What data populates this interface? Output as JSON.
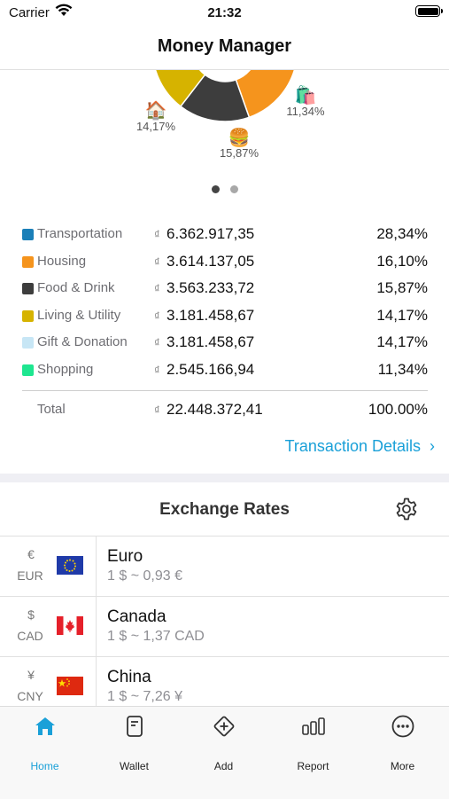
{
  "status": {
    "carrier": "Carrier",
    "time": "21:32"
  },
  "nav": {
    "title": "Money Manager"
  },
  "chart": {
    "labels": [
      {
        "text": "14,17%",
        "emoji": "🏠"
      },
      {
        "text": "15,87%",
        "emoji": "🍔"
      },
      {
        "text": "11,34%",
        "emoji": "🛍️"
      }
    ]
  },
  "chart_data": {
    "type": "pie",
    "categories": [
      "Transportation",
      "Housing",
      "Food & Drink",
      "Living & Utility",
      "Gift & Donation",
      "Shopping"
    ],
    "values": [
      28.34,
      16.1,
      15.87,
      14.17,
      14.17,
      11.34
    ],
    "colors": [
      "#1a7fb8",
      "#f5941d",
      "#3d3d3d",
      "#d6b300",
      "#c7e6f5",
      "#1ee690"
    ]
  },
  "legend": {
    "currency_symbol": "₫",
    "rows": [
      {
        "name": "Transportation",
        "amount": "6.362.917,35",
        "percent": "28,34%",
        "color": "#1a7fb8"
      },
      {
        "name": "Housing",
        "amount": "3.614.137,05",
        "percent": "16,10%",
        "color": "#f5941d"
      },
      {
        "name": "Food & Drink",
        "amount": "3.563.233,72",
        "percent": "15,87%",
        "color": "#3d3d3d"
      },
      {
        "name": "Living & Utility",
        "amount": "3.181.458,67",
        "percent": "14,17%",
        "color": "#d6b300"
      },
      {
        "name": "Gift & Donation",
        "amount": "3.181.458,67",
        "percent": "14,17%",
        "color": "#c7e6f5"
      },
      {
        "name": "Shopping",
        "amount": "2.545.166,94",
        "percent": "11,34%",
        "color": "#1ee690"
      }
    ],
    "total": {
      "label": "Total",
      "amount": "22.448.372,41",
      "percent": "100.00%"
    }
  },
  "transaction_details": {
    "label": "Transaction Details",
    "chevron": "›"
  },
  "exchange": {
    "title": "Exchange Rates",
    "rates": [
      {
        "symbol": "€",
        "code": "EUR",
        "name": "Euro",
        "value": "1 $ ~ 0,93 €",
        "flag": "eu-flag-icon"
      },
      {
        "symbol": "$",
        "code": "CAD",
        "name": "Canada",
        "value": "1 $ ~ 1,37 CAD",
        "flag": "canada-flag-icon"
      },
      {
        "symbol": "¥",
        "code": "CNY",
        "name": "China",
        "value": "1 $ ~ 7,26 ¥",
        "flag": "china-flag-icon"
      }
    ]
  },
  "tabs": [
    {
      "label": "Home",
      "icon": "home-icon",
      "active": true
    },
    {
      "label": "Wallet",
      "icon": "wallet-icon",
      "active": false
    },
    {
      "label": "Add",
      "icon": "add-icon",
      "active": false
    },
    {
      "label": "Report",
      "icon": "report-icon",
      "active": false
    },
    {
      "label": "More",
      "icon": "more-icon",
      "active": false
    }
  ],
  "colors": {
    "accent": "#1aa0d8",
    "pager_active": "#444444",
    "pager_inactive": "#a8a8a8"
  }
}
